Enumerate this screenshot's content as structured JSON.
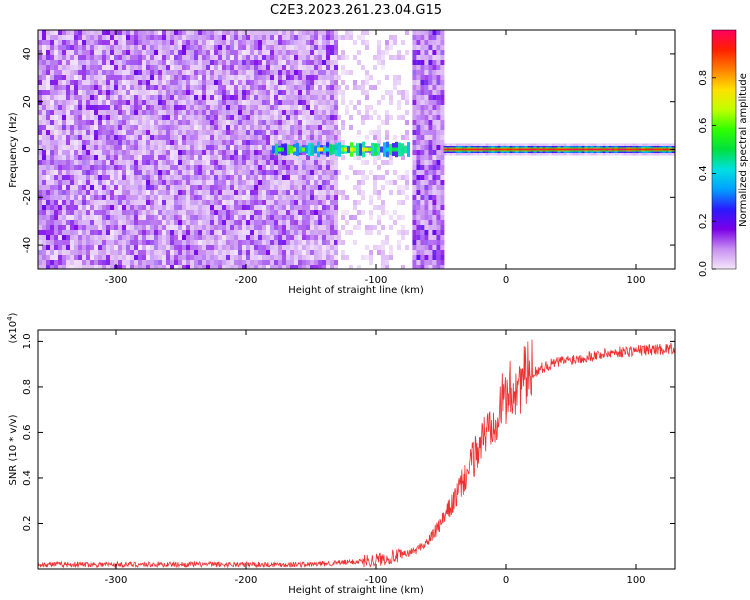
{
  "title": "C2E3.2023.261.23.04.G15",
  "chart_data": [
    {
      "type": "heatmap",
      "xlabel": "Height of straight line (km)",
      "ylabel": "Frequency (Hz)",
      "xlim": [
        -360,
        130
      ],
      "ylim": [
        -50,
        50
      ],
      "xticks": [
        -300,
        -200,
        -100,
        0,
        100
      ],
      "yticks": [
        -40,
        -20,
        0,
        20,
        40
      ],
      "colorbar": {
        "label": "Normalized spectral amplitude",
        "range": [
          0,
          1
        ],
        "ticks": [
          0.0,
          0.2,
          0.4,
          0.6,
          0.8
        ],
        "colormap": [
          "#f5e6fa",
          "#c890f0",
          "#7a00e8",
          "#2a1aff",
          "#00a0ff",
          "#00e0e0",
          "#00e040",
          "#30ff00",
          "#c0ff00",
          "#ffe000",
          "#ff8000",
          "#ff2000",
          "#ff0060"
        ]
      },
      "regions": [
        {
          "x": [
            -360,
            -130
          ],
          "description": "broadband noise",
          "amplitude": 0.15
        },
        {
          "x": [
            -130,
            -75
          ],
          "description": "sparse noise",
          "amplitude": 0.05
        },
        {
          "x": [
            -72,
            -48
          ],
          "description": "noise burst",
          "amplitude": 0.15
        },
        {
          "x": [
            -180,
            -75
          ],
          "description": "carrier near 0 Hz",
          "amplitude": 0.4
        },
        {
          "x": [
            -48,
            130
          ],
          "description": "strong carrier at 0 Hz",
          "amplitude": 0.9
        }
      ]
    },
    {
      "type": "line",
      "xlabel": "Height of straight line (km)",
      "ylabel": "SNR (10 * v/v)",
      "yscale_note": "(x10^4)",
      "xlim": [
        -360,
        130
      ],
      "ylim": [
        0,
        1.05
      ],
      "xticks": [
        -300,
        -200,
        -100,
        0,
        100
      ],
      "yticks": [
        0.2,
        0.4,
        0.6,
        0.8,
        1.0
      ],
      "series": [
        {
          "color": "#ee3030",
          "x": [
            -360,
            -300,
            -250,
            -200,
            -150,
            -120,
            -100,
            -80,
            -70,
            -60,
            -50,
            -40,
            -30,
            -20,
            -10,
            0,
            10,
            20,
            30,
            40,
            60,
            80,
            100,
            130
          ],
          "y": [
            0.02,
            0.02,
            0.02,
            0.02,
            0.02,
            0.03,
            0.04,
            0.06,
            0.08,
            0.12,
            0.2,
            0.3,
            0.42,
            0.55,
            0.66,
            0.76,
            0.82,
            0.86,
            0.89,
            0.91,
            0.93,
            0.95,
            0.96,
            0.97
          ]
        }
      ]
    }
  ]
}
